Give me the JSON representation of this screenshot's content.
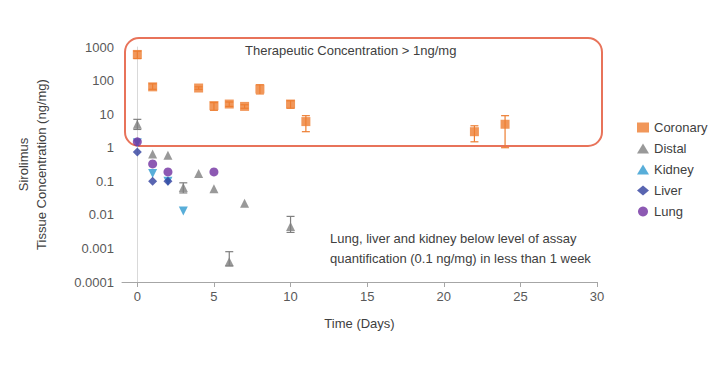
{
  "chart_data": {
    "type": "scatter",
    "x_label": "Time (Days)",
    "y_label": "Sirolimus\nTissue Concentration (ng/mg)",
    "annotations": [
      "Therapeutic Concentration > 1ng/mg",
      "Lung, liver and kidney below level of assay\nquantification (0.1 ng/mg) in less than 1 week"
    ],
    "log": "y",
    "grid": false,
    "legend": "right",
    "xlim": [
      -1,
      30
    ],
    "xticks": [
      0,
      5,
      10,
      15,
      20,
      25,
      30
    ],
    "ylim": [
      0.0001,
      1000
    ],
    "yticks": [
      0.0001,
      0.001,
      0.01,
      0.1,
      1,
      10,
      100,
      1000
    ],
    "series": [
      {
        "name": "Coronary",
        "color": "#ed7d31",
        "marker": "square",
        "x": [
          0,
          1,
          4,
          5,
          6,
          7,
          8,
          10,
          11,
          22,
          24
        ],
        "values": [
          600,
          65,
          60,
          18,
          20,
          17,
          56,
          20,
          6,
          3,
          5
        ],
        "error_low": [
          450,
          55,
          55,
          13,
          17,
          15,
          40,
          15,
          3,
          1.5,
          1
        ],
        "error_high": [
          750,
          80,
          65,
          22,
          23,
          19,
          75,
          25,
          9,
          4.5,
          9
        ]
      },
      {
        "name": "Distal",
        "color": "#7f7f7f",
        "marker": "triangle",
        "x": [
          0,
          1,
          2,
          3,
          4,
          5,
          6,
          7,
          10
        ],
        "values": [
          5,
          0.65,
          0.6,
          0.065,
          0.17,
          0.06,
          0.0004,
          0.022,
          0.0045
        ],
        "error_low": [
          3.5,
          null,
          null,
          0.045,
          null,
          null,
          0.0003,
          null,
          0.003
        ],
        "error_high": [
          7,
          null,
          null,
          0.09,
          null,
          null,
          0.0008,
          null,
          0.009
        ]
      },
      {
        "name": "Kidney",
        "color": "#2e9ad0",
        "marker": "triangle-down",
        "x": [
          0,
          1,
          2,
          3
        ],
        "values": [
          1.4,
          0.17,
          0.1,
          0.013
        ]
      },
      {
        "name": "Liver",
        "color": "#2f3f9e",
        "marker": "diamond",
        "x": [
          0,
          1,
          2
        ],
        "values": [
          0.75,
          0.1,
          0.1
        ]
      },
      {
        "name": "Lung",
        "color": "#7030a0",
        "marker": "circle",
        "x": [
          0,
          1,
          2,
          5
        ],
        "values": [
          1.5,
          0.33,
          0.19,
          0.19
        ]
      }
    ]
  }
}
